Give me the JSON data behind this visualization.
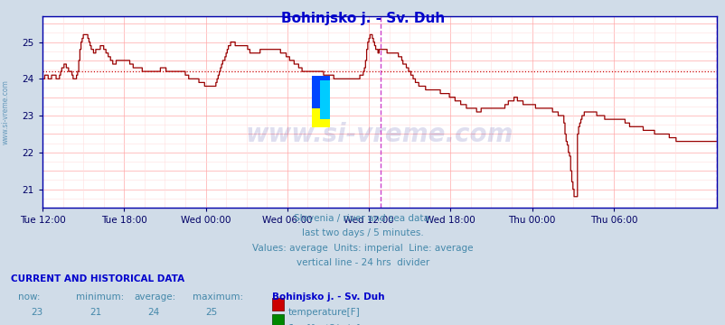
{
  "title": "Bohinjsko j. - Sv. Duh",
  "title_color": "#0000cc",
  "bg_color": "#d0dce8",
  "plot_bg_color": "#ffffff",
  "grid_color_major": "#ffaaaa",
  "grid_color_minor": "#ffdddd",
  "line_color": "#990000",
  "average_line_color": "#cc0000",
  "average_value": 24.2,
  "vline_color_24h": "#cc44cc",
  "vline_color_end": "#cc44cc",
  "axis_color": "#0000aa",
  "tick_color": "#000066",
  "watermark_text": "www.si-vreme.com",
  "watermark_color": "#000088",
  "watermark_alpha": 0.13,
  "ylim": [
    20.5,
    25.7
  ],
  "yticks": [
    21,
    22,
    23,
    24,
    25
  ],
  "subtitle_lines": [
    "Slovenia / river and sea data.",
    "last two days / 5 minutes.",
    "Values: average  Units: imperial  Line: average",
    "vertical line - 24 hrs  divider"
  ],
  "subtitle_color": "#4488aa",
  "footer_header": "CURRENT AND HISTORICAL DATA",
  "footer_header_color": "#0000cc",
  "temp_box_color": "#cc0000",
  "flow_box_color": "#008800",
  "x_tick_labels": [
    "Tue 12:00",
    "Tue 18:00",
    "Wed 00:00",
    "Wed 06:00",
    "Wed 12:00",
    "Wed 18:00",
    "Thu 00:00",
    "Thu 06:00"
  ],
  "temp_data": [
    24.0,
    24.0,
    24.1,
    24.1,
    24.1,
    24.0,
    24.0,
    24.0,
    24.1,
    24.1,
    24.1,
    24.1,
    24.0,
    24.0,
    24.0,
    24.1,
    24.2,
    24.3,
    24.3,
    24.4,
    24.4,
    24.3,
    24.3,
    24.2,
    24.2,
    24.2,
    24.1,
    24.0,
    24.0,
    24.0,
    24.1,
    24.2,
    24.5,
    24.8,
    25.0,
    25.1,
    25.2,
    25.2,
    25.2,
    25.2,
    25.1,
    25.0,
    24.9,
    24.8,
    24.8,
    24.7,
    24.7,
    24.8,
    24.8,
    24.8,
    24.8,
    24.9,
    24.9,
    24.9,
    24.8,
    24.8,
    24.7,
    24.7,
    24.6,
    24.6,
    24.5,
    24.5,
    24.4,
    24.4,
    24.4,
    24.5,
    24.5,
    24.5,
    24.5,
    24.5,
    24.5,
    24.5,
    24.5,
    24.5,
    24.5,
    24.5,
    24.5,
    24.4,
    24.4,
    24.4,
    24.3,
    24.3,
    24.3,
    24.3,
    24.3,
    24.3,
    24.3,
    24.3,
    24.2,
    24.2,
    24.2,
    24.2,
    24.2,
    24.2,
    24.2,
    24.2,
    24.2,
    24.2,
    24.2,
    24.2,
    24.2,
    24.2,
    24.2,
    24.2,
    24.3,
    24.3,
    24.3,
    24.3,
    24.3,
    24.2,
    24.2,
    24.2,
    24.2,
    24.2,
    24.2,
    24.2,
    24.2,
    24.2,
    24.2,
    24.2,
    24.2,
    24.2,
    24.2,
    24.2,
    24.2,
    24.2,
    24.1,
    24.1,
    24.1,
    24.0,
    24.0,
    24.0,
    24.0,
    24.0,
    24.0,
    24.0,
    24.0,
    24.0,
    23.9,
    23.9,
    23.9,
    23.9,
    23.9,
    23.8,
    23.8,
    23.8,
    23.8,
    23.8,
    23.8,
    23.8,
    23.8,
    23.8,
    23.8,
    23.9,
    24.0,
    24.1,
    24.2,
    24.3,
    24.4,
    24.5,
    24.5,
    24.6,
    24.7,
    24.8,
    24.9,
    24.9,
    25.0,
    25.0,
    25.0,
    25.0,
    24.9,
    24.9,
    24.9,
    24.9,
    24.9,
    24.9,
    24.9,
    24.9,
    24.9,
    24.9,
    24.9,
    24.8,
    24.8,
    24.7,
    24.7,
    24.7,
    24.7,
    24.7,
    24.7,
    24.7,
    24.7,
    24.7,
    24.8,
    24.8,
    24.8,
    24.8,
    24.8,
    24.8,
    24.8,
    24.8,
    24.8,
    24.8,
    24.8,
    24.8,
    24.8,
    24.8,
    24.8,
    24.8,
    24.8,
    24.8,
    24.7,
    24.7,
    24.7,
    24.7,
    24.7,
    24.6,
    24.6,
    24.6,
    24.5,
    24.5,
    24.5,
    24.5,
    24.4,
    24.4,
    24.4,
    24.4,
    24.3,
    24.3,
    24.3,
    24.2,
    24.2,
    24.2,
    24.2,
    24.2,
    24.2,
    24.2,
    24.2,
    24.2,
    24.2,
    24.2,
    24.2,
    24.2,
    24.2,
    24.2,
    24.2,
    24.2,
    24.2,
    24.2,
    24.1,
    24.1,
    24.1,
    24.1,
    24.1,
    24.1,
    24.1,
    24.1,
    24.1,
    24.0,
    24.0,
    24.0,
    24.0,
    24.0,
    24.0,
    24.0,
    24.0,
    24.0,
    24.0,
    24.0,
    24.0,
    24.0,
    24.0,
    24.0,
    24.0,
    24.0,
    24.0,
    24.0,
    24.0,
    24.0,
    24.0,
    24.0,
    24.1,
    24.1,
    24.1,
    24.2,
    24.3,
    24.5,
    24.8,
    25.0,
    25.1,
    25.2,
    25.2,
    25.1,
    25.0,
    24.9,
    24.8,
    24.8,
    24.7,
    24.8,
    24.8,
    24.8,
    24.8,
    24.8,
    24.8,
    24.8,
    24.7,
    24.7,
    24.7,
    24.7,
    24.7,
    24.7,
    24.7,
    24.7,
    24.7,
    24.7,
    24.6,
    24.6,
    24.6,
    24.5,
    24.4,
    24.4,
    24.4,
    24.3,
    24.3,
    24.2,
    24.2,
    24.1,
    24.1,
    24.0,
    24.0,
    23.9,
    23.9,
    23.9,
    23.8,
    23.8,
    23.8,
    23.8,
    23.8,
    23.8,
    23.7,
    23.7,
    23.7,
    23.7,
    23.7,
    23.7,
    23.7,
    23.7,
    23.7,
    23.7,
    23.7,
    23.7,
    23.7,
    23.6,
    23.6,
    23.6,
    23.6,
    23.6,
    23.6,
    23.6,
    23.6,
    23.5,
    23.5,
    23.5,
    23.5,
    23.5,
    23.4,
    23.4,
    23.4,
    23.4,
    23.4,
    23.3,
    23.3,
    23.3,
    23.3,
    23.3,
    23.2,
    23.2,
    23.2,
    23.2,
    23.2,
    23.2,
    23.2,
    23.2,
    23.2,
    23.1,
    23.1,
    23.1,
    23.1,
    23.2,
    23.2,
    23.2,
    23.2,
    23.2,
    23.2,
    23.2,
    23.2,
    23.2,
    23.2,
    23.2,
    23.2,
    23.2,
    23.2,
    23.2,
    23.2,
    23.2,
    23.2,
    23.2,
    23.2,
    23.2,
    23.3,
    23.3,
    23.3,
    23.4,
    23.4,
    23.4,
    23.4,
    23.4,
    23.5,
    23.5,
    23.5,
    23.4,
    23.4,
    23.4,
    23.4,
    23.4,
    23.3,
    23.3,
    23.3,
    23.3,
    23.3,
    23.3,
    23.3,
    23.3,
    23.3,
    23.3,
    23.3,
    23.2,
    23.2,
    23.2,
    23.2,
    23.2,
    23.2,
    23.2,
    23.2,
    23.2,
    23.2,
    23.2,
    23.2,
    23.2,
    23.2,
    23.2,
    23.1,
    23.1,
    23.1,
    23.1,
    23.1,
    23.0,
    23.0,
    23.0,
    23.0,
    23.0,
    22.8,
    22.5,
    22.3,
    22.2,
    22.0,
    21.9,
    21.5,
    21.2,
    21.0,
    20.8,
    20.8,
    20.8,
    22.5,
    22.7,
    22.8,
    22.9,
    23.0,
    23.0,
    23.1,
    23.1,
    23.1,
    23.1,
    23.1,
    23.1,
    23.1,
    23.1,
    23.1,
    23.1,
    23.1,
    23.0,
    23.0,
    23.0,
    23.0,
    23.0,
    23.0,
    23.0,
    22.9,
    22.9,
    22.9,
    22.9,
    22.9,
    22.9,
    22.9,
    22.9,
    22.9,
    22.9,
    22.9,
    22.9,
    22.9,
    22.9,
    22.9,
    22.9,
    22.9,
    22.9,
    22.8,
    22.8,
    22.8,
    22.8,
    22.7,
    22.7,
    22.7,
    22.7,
    22.7,
    22.7,
    22.7,
    22.7,
    22.7,
    22.7,
    22.7,
    22.7,
    22.6,
    22.6,
    22.6,
    22.6,
    22.6,
    22.6,
    22.6,
    22.6,
    22.6,
    22.6,
    22.5,
    22.5,
    22.5,
    22.5,
    22.5,
    22.5,
    22.5,
    22.5,
    22.5,
    22.5,
    22.5,
    22.5,
    22.5,
    22.4,
    22.4,
    22.4,
    22.4,
    22.4,
    22.4,
    22.3,
    22.3,
    22.3,
    22.3,
    22.3,
    22.3,
    22.3,
    22.3,
    22.3,
    22.3,
    22.3,
    22.3,
    22.3,
    22.3,
    22.3,
    22.3,
    22.3,
    22.3,
    22.3,
    22.3,
    22.3,
    22.3,
    22.3,
    22.3,
    22.3,
    22.3,
    22.3,
    22.3,
    22.3,
    22.3,
    22.3,
    22.3,
    22.3,
    22.3,
    22.3,
    22.3,
    22.3
  ]
}
